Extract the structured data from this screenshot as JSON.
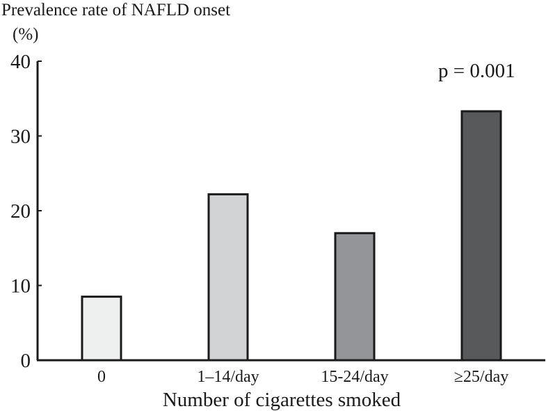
{
  "chart_data": {
    "type": "bar",
    "title": "",
    "ylabel": "Prevalence rate of NAFLD onset",
    "yunit": "(%)",
    "xlabel": "Number of cigarettes smoked",
    "categories": [
      "0",
      "1–14/day",
      "15-24/day",
      "≥25/day"
    ],
    "values": [
      8.5,
      22.2,
      17.0,
      33.3
    ],
    "ylim": [
      0,
      40
    ],
    "yticks": [
      "0",
      "10",
      "20",
      "30",
      "40"
    ],
    "grid": false,
    "bar_colors": [
      "#eef0ef",
      "#d2d3d5",
      "#939598",
      "#58595b"
    ],
    "annotation": "p = 0.001"
  }
}
